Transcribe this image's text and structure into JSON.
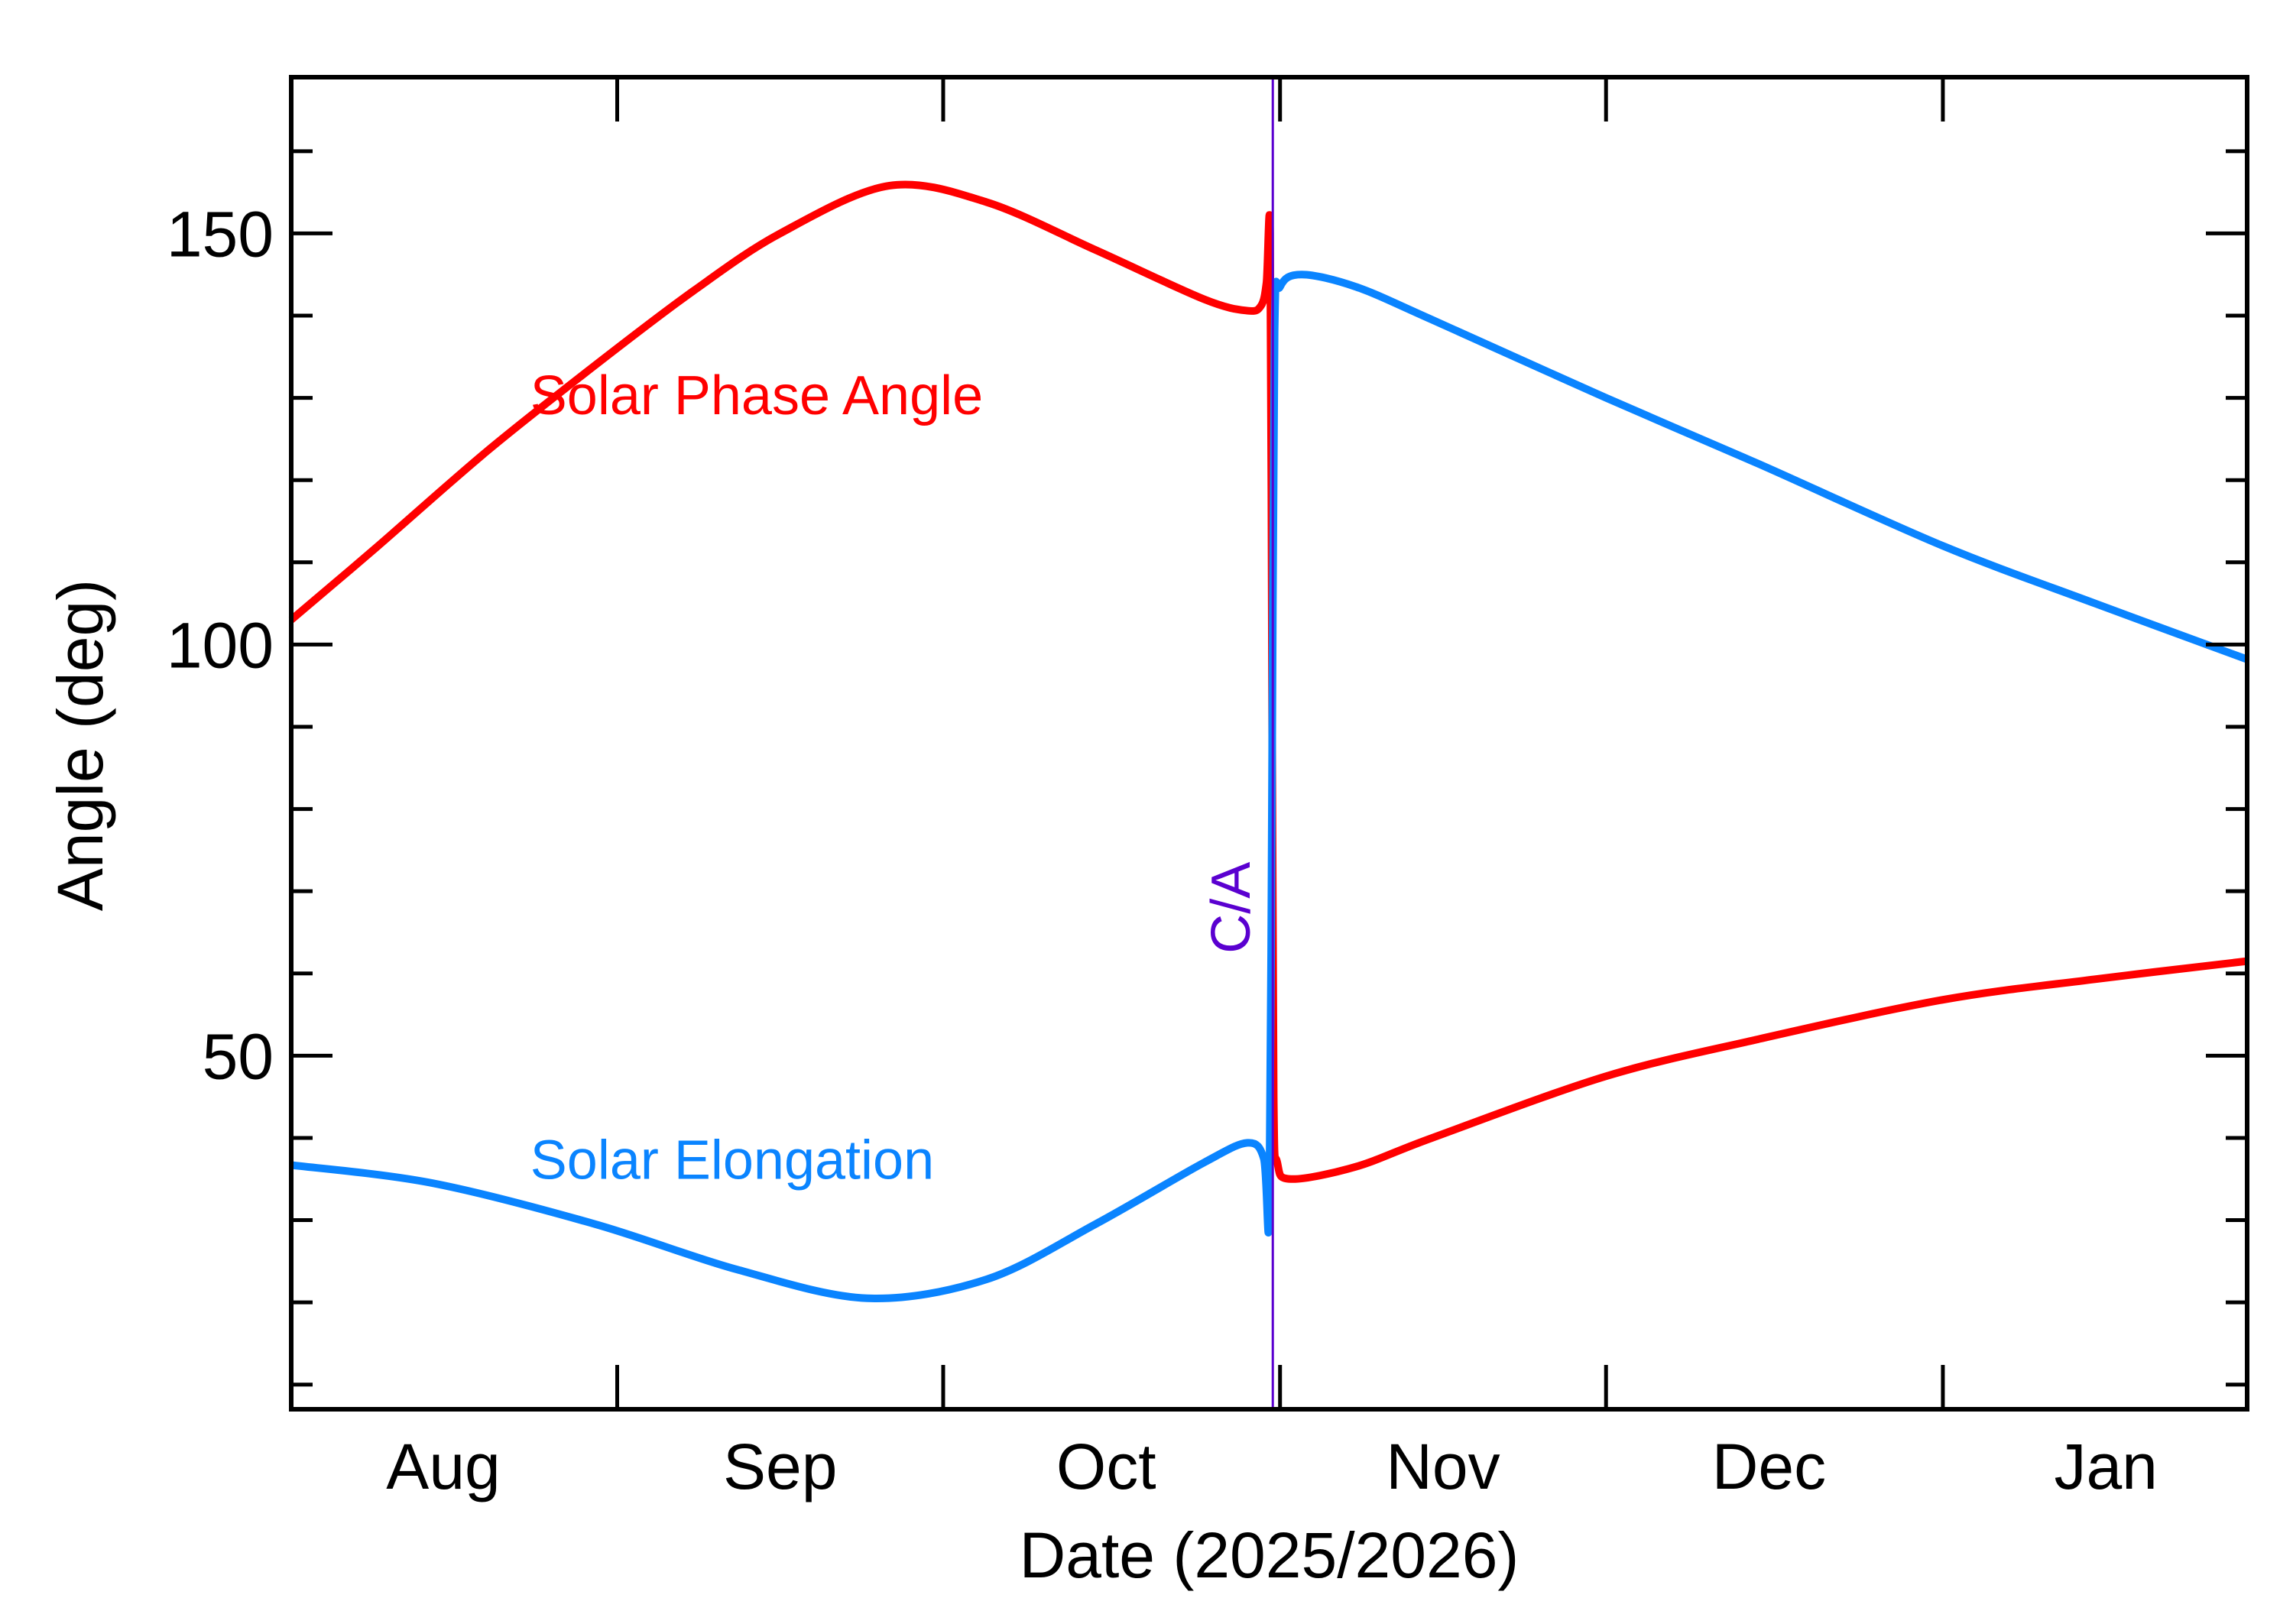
{
  "chart_data": {
    "type": "line",
    "title": "",
    "xlabel": "Date (2025/2026)",
    "ylabel": "Angle (deg)",
    "xlim": [
      "2025-08-02",
      "2026-01-29"
    ],
    "ylim": [
      7,
      169
    ],
    "y_major_ticks": [
      50,
      100,
      150
    ],
    "y_minor_step": 10,
    "x_month_ticks": [
      "2025-09-01",
      "2025-10-01",
      "2025-11-01",
      "2025-12-01",
      "2026-01-01"
    ],
    "x_tick_labels": [
      {
        "label": "Aug",
        "date": "2025-08-16"
      },
      {
        "label": "Sep",
        "date": "2025-09-16"
      },
      {
        "label": "Oct",
        "date": "2025-10-16"
      },
      {
        "label": "Nov",
        "date": "2025-11-16"
      },
      {
        "label": "Dec",
        "date": "2025-12-16"
      },
      {
        "label": "Jan",
        "date": "2026-01-16"
      }
    ],
    "grid": false,
    "legend": "inline labels",
    "closest_approach": {
      "label": "C/A",
      "date": "2025-10-31T08:00",
      "color": "#5a00d0"
    },
    "series": [
      {
        "name": "Solar Phase Angle",
        "color": "#ff0000",
        "label_at": {
          "date": "2025-08-24",
          "value": 128
        },
        "points": [
          [
            "2025-08-02",
            103
          ],
          [
            "2025-08-10",
            112
          ],
          [
            "2025-08-20",
            123.5
          ],
          [
            "2025-08-30",
            134
          ],
          [
            "2025-09-08",
            143
          ],
          [
            "2025-09-16",
            150
          ],
          [
            "2025-09-26",
            155.8
          ],
          [
            "2025-10-05",
            153.8
          ],
          [
            "2025-10-15",
            148
          ],
          [
            "2025-10-25",
            142
          ],
          [
            "2025-10-29",
            140.6
          ],
          [
            "2025-10-30T06:00",
            141.2
          ],
          [
            "2025-10-30T18:00",
            144
          ],
          [
            "2025-10-31T02:00",
            150
          ],
          [
            "2025-10-31T06:00",
            100
          ],
          [
            "2025-10-31T10:00",
            45
          ],
          [
            "2025-10-31T18:00",
            37
          ],
          [
            "2025-11-02",
            35
          ],
          [
            "2025-11-08",
            36.5
          ],
          [
            "2025-11-15",
            40
          ],
          [
            "2025-12-01",
            47.5
          ],
          [
            "2025-12-15",
            52
          ],
          [
            "2026-01-01",
            56.8
          ],
          [
            "2026-01-15",
            59.3
          ],
          [
            "2026-01-29",
            61.5
          ]
        ]
      },
      {
        "name": "Solar Elongation",
        "color": "#0a84ff",
        "label_at": {
          "date": "2025-08-24",
          "value": 35
        },
        "points": [
          [
            "2025-08-02",
            36.7
          ],
          [
            "2025-08-15",
            34.5
          ],
          [
            "2025-08-30",
            29.5
          ],
          [
            "2025-09-12",
            24
          ],
          [
            "2025-09-24",
            20.5
          ],
          [
            "2025-10-05",
            22.8
          ],
          [
            "2025-10-15",
            29.5
          ],
          [
            "2025-10-25",
            37
          ],
          [
            "2025-10-29",
            39.4
          ],
          [
            "2025-10-30T12:00",
            37.5
          ],
          [
            "2025-10-31T00:00",
            30.5
          ],
          [
            "2025-10-31T06:00",
            80
          ],
          [
            "2025-10-31T12:00",
            138
          ],
          [
            "2025-11-01T00:00",
            143.5
          ],
          [
            "2025-11-03",
            145
          ],
          [
            "2025-11-08",
            143.5
          ],
          [
            "2025-11-15",
            139.5
          ],
          [
            "2025-12-01",
            130
          ],
          [
            "2025-12-15",
            122
          ],
          [
            "2026-01-01",
            112
          ],
          [
            "2026-01-15",
            105
          ],
          [
            "2026-01-29",
            98.2
          ]
        ]
      }
    ]
  }
}
